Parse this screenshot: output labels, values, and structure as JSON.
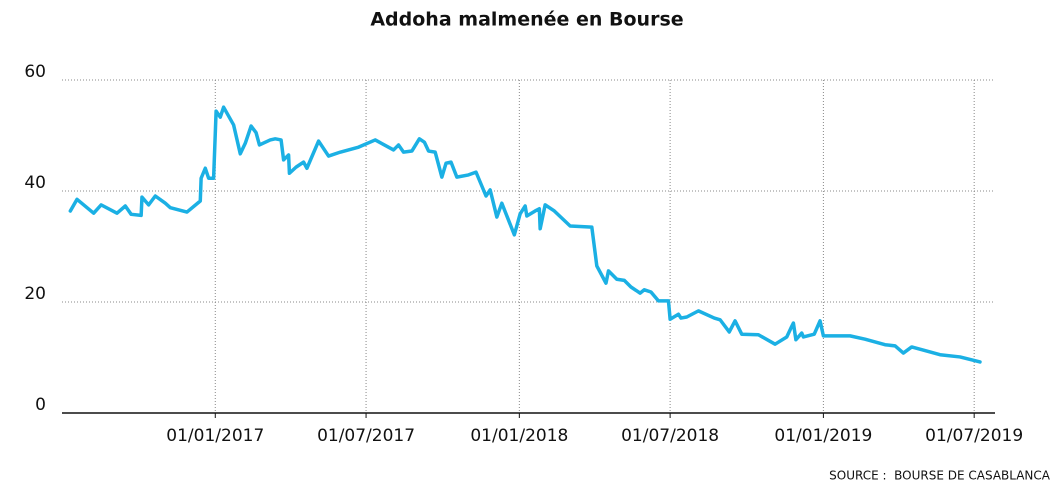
{
  "chart_data": {
    "type": "line",
    "title": "Addoha malmenée en Bourse",
    "source": "SOURCE :  BOURSE DE CASABLANCA",
    "xlim": [
      "2016-07-01",
      "2019-07-26"
    ],
    "xticks": [
      {
        "value": "2017-01-01",
        "label": "01/01/2017"
      },
      {
        "value": "2017-07-01",
        "label": "01/07/2017"
      },
      {
        "value": "2018-01-01",
        "label": "01/01/2018"
      },
      {
        "value": "2018-07-01",
        "label": "01/07/2018"
      },
      {
        "value": "2019-01-01",
        "label": "01/01/2019"
      },
      {
        "value": "2019-07-01",
        "label": "01/07/2019"
      }
    ],
    "ylim": [
      0,
      60
    ],
    "yticks": [
      0,
      20,
      40,
      60
    ],
    "grid": true,
    "series": [
      {
        "color": "#1bb0e4",
        "x": [
          "2016-07-11",
          "2016-07-19",
          "2016-08-08",
          "2016-08-17",
          "2016-09-05",
          "2016-09-15",
          "2016-09-22",
          "2016-10-04",
          "2016-10-05",
          "2016-10-13",
          "2016-10-21",
          "2016-11-02",
          "2016-11-08",
          "2016-11-28",
          "2016-12-14",
          "2016-12-15",
          "2016-12-20",
          "2016-12-24",
          "2016-12-30",
          "2017-01-02",
          "2017-01-07",
          "2017-01-11",
          "2017-01-23",
          "2017-01-31",
          "2017-02-06",
          "2017-02-13",
          "2017-02-19",
          "2017-02-23",
          "2017-03-08",
          "2017-03-14",
          "2017-03-21",
          "2017-03-24",
          "2017-03-30",
          "2017-03-31",
          "2017-04-08",
          "2017-04-17",
          "2017-04-21",
          "2017-05-05",
          "2017-05-17",
          "2017-05-31",
          "2017-06-22",
          "2017-07-12",
          "2017-08-03",
          "2017-08-09",
          "2017-08-15",
          "2017-08-25",
          "2017-09-03",
          "2017-09-09",
          "2017-09-14",
          "2017-09-22",
          "2017-09-30",
          "2017-10-05",
          "2017-10-11",
          "2017-10-18",
          "2017-11-01",
          "2017-11-10",
          "2017-11-22",
          "2017-11-27",
          "2017-12-05",
          "2017-12-11",
          "2017-12-26",
          "2018-01-02",
          "2018-01-08",
          "2018-01-10",
          "2018-01-20",
          "2018-01-25",
          "2018-01-26",
          "2018-02-01",
          "2018-02-12",
          "2018-03-03",
          "2018-03-29",
          "2018-04-04",
          "2018-04-15",
          "2018-04-18",
          "2018-04-28",
          "2018-05-07",
          "2018-05-15",
          "2018-05-26",
          "2018-05-31",
          "2018-06-08",
          "2018-06-17",
          "2018-06-29",
          "2018-07-01",
          "2018-07-11",
          "2018-07-14",
          "2018-07-21",
          "2018-08-04",
          "2018-08-23",
          "2018-08-30",
          "2018-09-10",
          "2018-09-17",
          "2018-09-25",
          "2018-10-15",
          "2018-11-04",
          "2018-11-18",
          "2018-11-23",
          "2018-11-26",
          "2018-11-29",
          "2018-12-06",
          "2018-12-08",
          "2018-12-21",
          "2018-12-28",
          "2019-01-01",
          "2019-02-02",
          "2019-02-20",
          "2019-03-16",
          "2019-03-28",
          "2019-04-07",
          "2019-04-17",
          "2019-05-09",
          "2019-05-21",
          "2019-06-14",
          "2019-07-08"
        ],
        "values": [
          36.4,
          38.5,
          36,
          37.5,
          36,
          37.3,
          35.8,
          35.6,
          38.9,
          37.5,
          39.1,
          37.8,
          37,
          36.2,
          38.2,
          42.3,
          44.1,
          42.3,
          42.3,
          54.4,
          53.3,
          55.1,
          51.9,
          46.7,
          48.6,
          51.7,
          50.5,
          48.3,
          49.2,
          49.4,
          49.2,
          45.6,
          46.5,
          43.2,
          44.3,
          45.2,
          44.1,
          49,
          46.3,
          47,
          47.9,
          49.2,
          47.4,
          48.3,
          47,
          47.2,
          49.4,
          48.8,
          47.2,
          47,
          42.5,
          45,
          45.2,
          42.5,
          42.9,
          43.4,
          39.1,
          40.2,
          35.3,
          37.8,
          32.1,
          35.9,
          37.3,
          35.5,
          36.4,
          36.8,
          33.2,
          37.5,
          36.4,
          33.7,
          33.5,
          26.5,
          23.4,
          25.6,
          24.1,
          23.9,
          22.7,
          21.6,
          22.2,
          21.8,
          20.2,
          20.2,
          16.9,
          17.8,
          17.1,
          17.3,
          18.4,
          17.1,
          16.8,
          14.6,
          16.6,
          14.2,
          14.1,
          12.4,
          13.7,
          15.3,
          16.2,
          13.2,
          14.4,
          13.7,
          14.2,
          16.6,
          13.9,
          13.9,
          13.3,
          12.3,
          12.1,
          10.8,
          11.9,
          11,
          10.5,
          10.1,
          9.2
        ]
      }
    ]
  }
}
